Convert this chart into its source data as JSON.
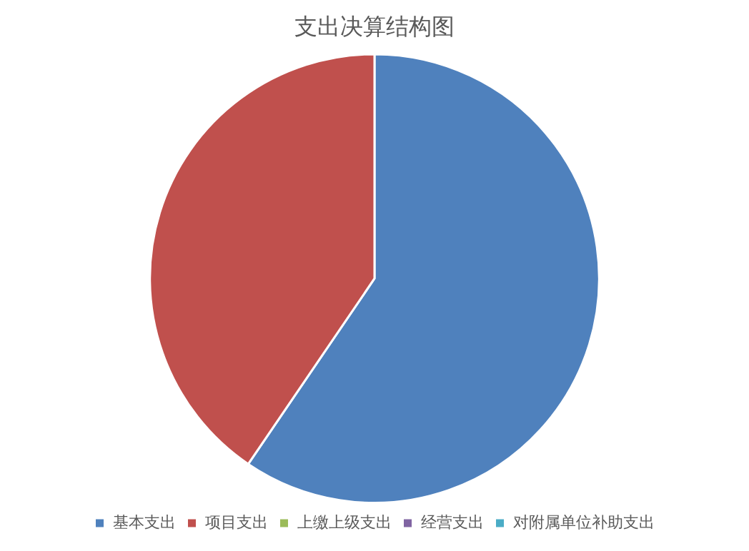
{
  "chart_data": {
    "type": "pie",
    "title": "支出决算结构图",
    "categories": [
      "基本支出",
      "项目支出",
      "上缴上级支出",
      "经营支出",
      "对附属单位补助支出"
    ],
    "values": [
      59.5,
      40.5,
      0,
      0,
      0
    ],
    "colors": [
      "#4f81bd",
      "#c0504d",
      "#9bbb59",
      "#8064a2",
      "#4bacc6"
    ],
    "legend": "bottom"
  }
}
